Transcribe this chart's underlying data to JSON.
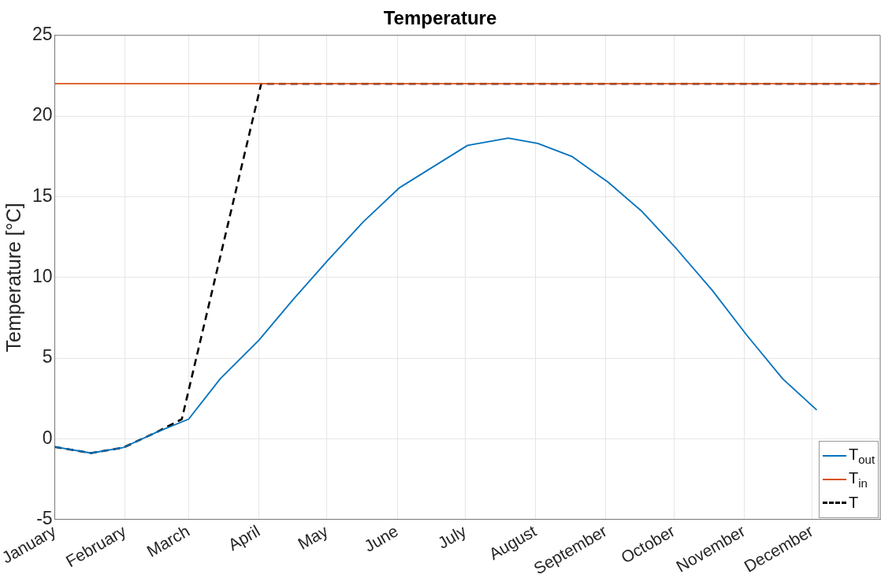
{
  "chart_data": {
    "type": "line",
    "title": "Temperature",
    "ylabel": "Temperature [°C]",
    "xlim": [
      "--01-01",
      "--12-31"
    ],
    "xticks": [
      {
        "value": "--01-01",
        "label": "January"
      },
      {
        "value": "--02-01",
        "label": "February"
      },
      {
        "value": "--03-01",
        "label": "March"
      },
      {
        "value": "--04-01",
        "label": "April"
      },
      {
        "value": "--05-01",
        "label": "May"
      },
      {
        "value": "--06-01",
        "label": "June"
      },
      {
        "value": "--07-01",
        "label": "July"
      },
      {
        "value": "--08-01",
        "label": "August"
      },
      {
        "value": "--09-01",
        "label": "September"
      },
      {
        "value": "--10-01",
        "label": "October"
      },
      {
        "value": "--11-01",
        "label": "November"
      },
      {
        "value": "--12-01",
        "label": "December"
      }
    ],
    "ylim": [
      -5,
      25
    ],
    "yticks": [
      -5,
      0,
      5,
      10,
      15,
      20,
      25
    ],
    "grid": true,
    "legend": "bottom right",
    "marker": "none",
    "series": [
      {
        "name": "T$_{out}$",
        "color": "#0072bd",
        "line_style": "solid",
        "x": [
          "--01-01",
          "--01-17",
          "--01-31",
          "--02-15",
          "--03-01",
          "--03-15",
          "--04-01",
          "--04-16",
          "--05-01",
          "--05-17",
          "--06-02",
          "--07-02",
          "--07-20",
          "--08-02",
          "--08-17",
          "--09-02",
          "--09-17",
          "--10-02",
          "--10-18",
          "--11-02",
          "--11-18",
          "--12-03"
        ],
        "values": [
          -0.5,
          -0.88,
          -0.55,
          0.42,
          1.22,
          3.73,
          6.11,
          8.62,
          11.0,
          13.44,
          15.56,
          18.18,
          18.63,
          18.3,
          17.5,
          15.9,
          14.08,
          11.8,
          9.19,
          6.45,
          3.72,
          1.79
        ]
      },
      {
        "name": "T$_{in}$",
        "color": "#d95319",
        "line_style": "solid",
        "x": [
          "--01-01",
          "--12-31"
        ],
        "values": [
          22,
          22
        ]
      },
      {
        "name": "T",
        "color": "#000000",
        "line_style": "dashed",
        "x": [
          "--01-01",
          "--01-17",
          "--01-31",
          "--02-15",
          "--02-26",
          "--04-02",
          "--12-31"
        ],
        "values": [
          -0.5,
          -0.88,
          -0.55,
          0.42,
          1.22,
          22,
          22
        ]
      }
    ]
  }
}
